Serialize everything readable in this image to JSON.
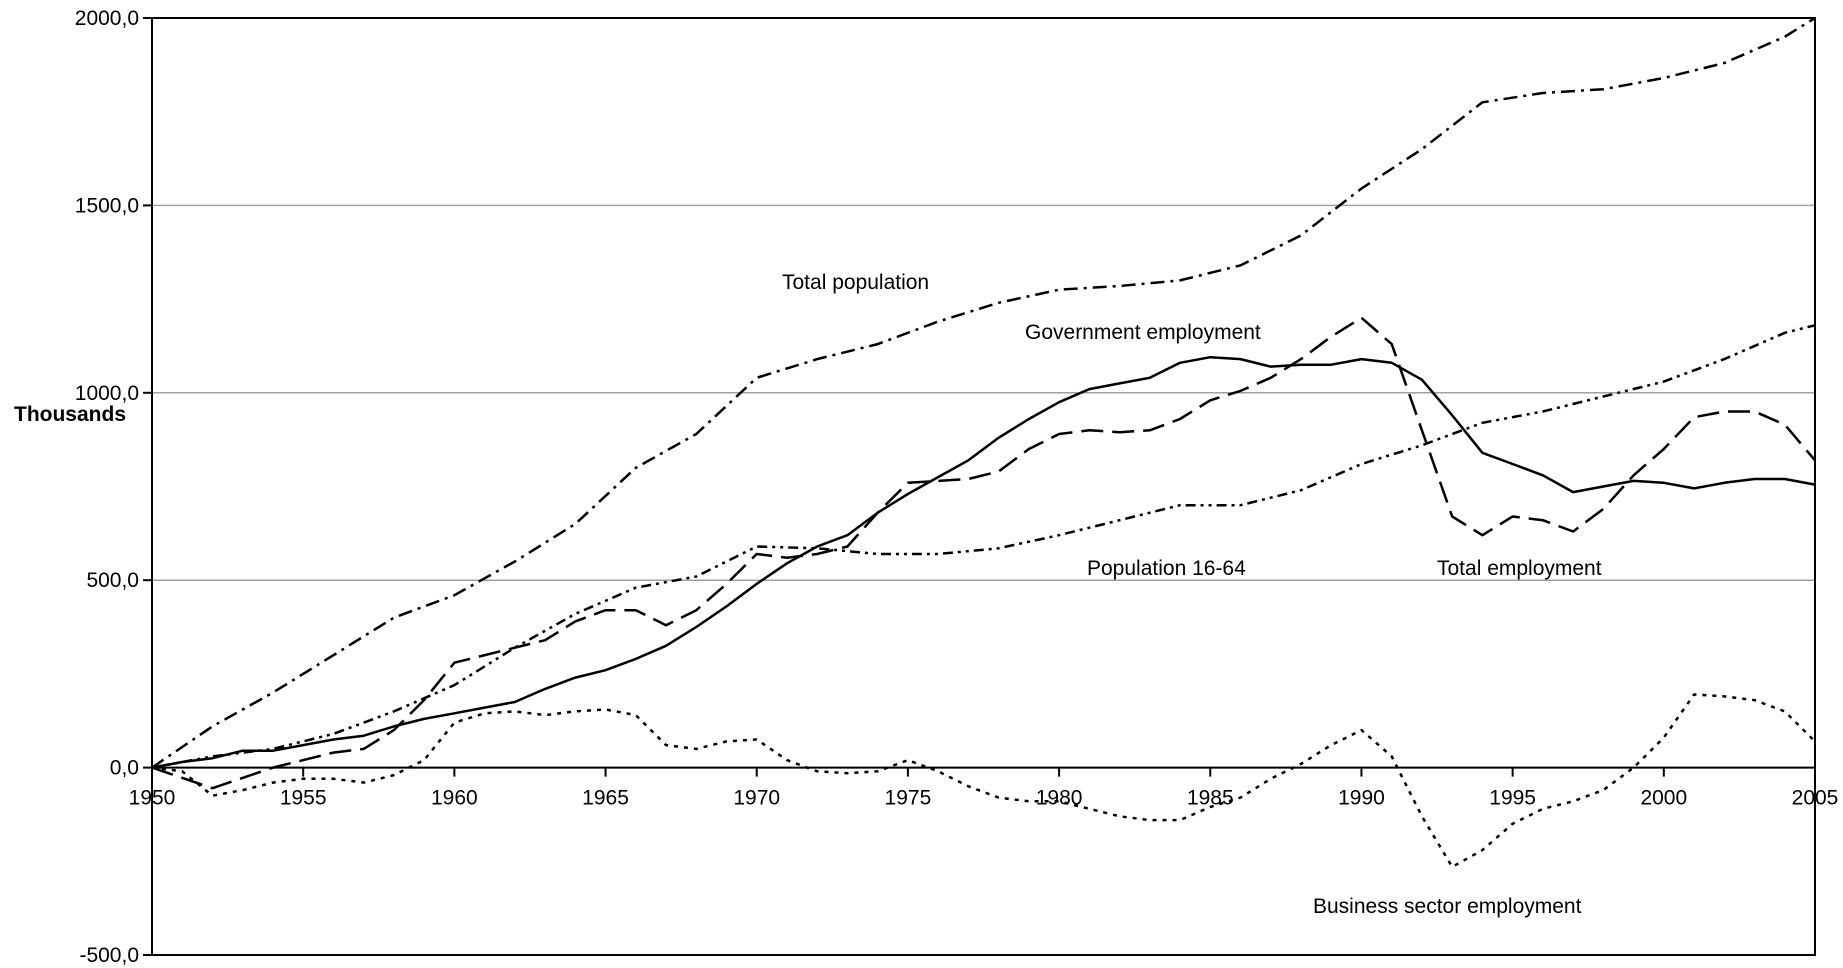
{
  "chart_data": {
    "type": "line",
    "title": "",
    "xlabel": "",
    "ylabel": "Thousands",
    "xlim": [
      1950,
      2005
    ],
    "ylim": [
      -500,
      2000
    ],
    "x_ticks": [
      1950,
      1955,
      1960,
      1965,
      1970,
      1975,
      1980,
      1985,
      1990,
      1995,
      2000,
      2005
    ],
    "y_ticks": [
      {
        "value": -500,
        "label": "-500,0"
      },
      {
        "value": 0,
        "label": "0,0"
      },
      {
        "value": 500,
        "label": "500,0"
      },
      {
        "value": 1000,
        "label": "1000,0"
      },
      {
        "value": 1500,
        "label": "1500,0"
      },
      {
        "value": 2000,
        "label": "2000,0"
      }
    ],
    "grid": "horizontal",
    "legend": "none",
    "series": [
      {
        "name": "Total population",
        "style": "dash-dot",
        "x": [
          1950,
          1952,
          1954,
          1956,
          1958,
          1960,
          1962,
          1964,
          1966,
          1968,
          1970,
          1972,
          1974,
          1976,
          1978,
          1980,
          1982,
          1984,
          1986,
          1988,
          1990,
          1992,
          1994,
          1996,
          1998,
          2000,
          2002,
          2004,
          2005
        ],
        "values": [
          0,
          110,
          200,
          300,
          400,
          460,
          550,
          650,
          800,
          890,
          1040,
          1090,
          1130,
          1190,
          1240,
          1275,
          1285,
          1300,
          1340,
          1420,
          1545,
          1650,
          1775,
          1800,
          1810,
          1840,
          1880,
          1950,
          2000
        ]
      },
      {
        "name": "Government employment",
        "style": "long-dash",
        "x": [
          1950,
          1952,
          1954,
          1956,
          1957,
          1958,
          1959,
          1960,
          1962,
          1963,
          1964,
          1965,
          1966,
          1967,
          1968,
          1969,
          1970,
          1971,
          1972,
          1973,
          1974,
          1975,
          1976,
          1977,
          1978,
          1979,
          1980,
          1981,
          1982,
          1983,
          1984,
          1985,
          1986,
          1987,
          1988,
          1989,
          1990,
          1991,
          1992,
          1993,
          1994,
          1995,
          1996,
          1997,
          1998,
          1999,
          2000,
          2001,
          2002,
          2003,
          2004,
          2005
        ],
        "values": [
          0,
          -55,
          0,
          40,
          50,
          100,
          180,
          280,
          320,
          340,
          390,
          420,
          420,
          380,
          420,
          490,
          570,
          560,
          570,
          590,
          680,
          760,
          765,
          770,
          790,
          850,
          890,
          900,
          895,
          900,
          930,
          980,
          1005,
          1040,
          1090,
          1150,
          1200,
          1130,
          900,
          670,
          620,
          670,
          660,
          630,
          690,
          780,
          850,
          935,
          950,
          950,
          915,
          820
        ]
      },
      {
        "name": "Population 16-64",
        "style": "dash-dot-dot",
        "x": [
          1950,
          1952,
          1954,
          1956,
          1958,
          1960,
          1962,
          1964,
          1966,
          1968,
          1970,
          1972,
          1974,
          1976,
          1978,
          1980,
          1982,
          1984,
          1986,
          1988,
          1990,
          1992,
          1994,
          1996,
          1998,
          2000,
          2002,
          2004,
          2005
        ],
        "values": [
          0,
          30,
          50,
          90,
          150,
          220,
          320,
          410,
          480,
          510,
          590,
          585,
          570,
          570,
          585,
          620,
          660,
          700,
          700,
          740,
          810,
          860,
          920,
          950,
          990,
          1030,
          1090,
          1160,
          1180
        ]
      },
      {
        "name": "Total employment",
        "style": "solid",
        "x": [
          1950,
          1951,
          1952,
          1953,
          1954,
          1955,
          1956,
          1957,
          1958,
          1959,
          1960,
          1961,
          1962,
          1963,
          1964,
          1965,
          1966,
          1967,
          1968,
          1969,
          1970,
          1971,
          1972,
          1973,
          1974,
          1975,
          1976,
          1977,
          1978,
          1979,
          1980,
          1981,
          1982,
          1983,
          1984,
          1985,
          1986,
          1987,
          1988,
          1989,
          1990,
          1991,
          1992,
          1993,
          1994,
          1995,
          1996,
          1997,
          1998,
          1999,
          2000,
          2001,
          2002,
          2003,
          2004,
          2005
        ],
        "values": [
          0,
          15,
          25,
          45,
          45,
          60,
          75,
          85,
          110,
          130,
          145,
          160,
          175,
          210,
          240,
          260,
          290,
          325,
          375,
          430,
          490,
          545,
          590,
          620,
          680,
          730,
          775,
          820,
          880,
          930,
          975,
          1010,
          1025,
          1040,
          1080,
          1095,
          1090,
          1070,
          1075,
          1075,
          1090,
          1080,
          1035,
          940,
          840,
          810,
          780,
          735,
          750,
          765,
          760,
          745,
          760,
          770,
          770,
          755
        ]
      },
      {
        "name": "Business sector employment",
        "style": "dotted",
        "x": [
          1950,
          1951,
          1952,
          1953,
          1954,
          1955,
          1956,
          1957,
          1958,
          1959,
          1960,
          1961,
          1962,
          1963,
          1964,
          1965,
          1966,
          1967,
          1968,
          1969,
          1970,
          1971,
          1972,
          1973,
          1974,
          1975,
          1976,
          1977,
          1978,
          1979,
          1980,
          1981,
          1982,
          1983,
          1984,
          1985,
          1986,
          1987,
          1988,
          1989,
          1990,
          1991,
          1992,
          1993,
          1994,
          1995,
          1996,
          1997,
          1998,
          1999,
          2000,
          2001,
          2002,
          2003,
          2004,
          2005
        ],
        "values": [
          0,
          -10,
          -75,
          -60,
          -40,
          -30,
          -30,
          -40,
          -20,
          20,
          120,
          145,
          150,
          140,
          150,
          155,
          140,
          60,
          50,
          70,
          75,
          20,
          -10,
          -15,
          -10,
          20,
          -10,
          -50,
          -80,
          -90,
          -90,
          -110,
          -130,
          -140,
          -140,
          -105,
          -80,
          -30,
          10,
          60,
          100,
          30,
          -130,
          -265,
          -220,
          -150,
          -110,
          -90,
          -60,
          0,
          80,
          195,
          190,
          180,
          150,
          70
        ]
      }
    ],
    "annotations": [
      {
        "text": "Total population",
        "series": "Total population"
      },
      {
        "text": "Government employment",
        "series": "Government employment"
      },
      {
        "text": "Population 16-64",
        "series": "Population 16-64"
      },
      {
        "text": "Total employment",
        "series": "Total employment"
      },
      {
        "text": "Business sector employment",
        "series": "Business sector employment"
      }
    ]
  }
}
